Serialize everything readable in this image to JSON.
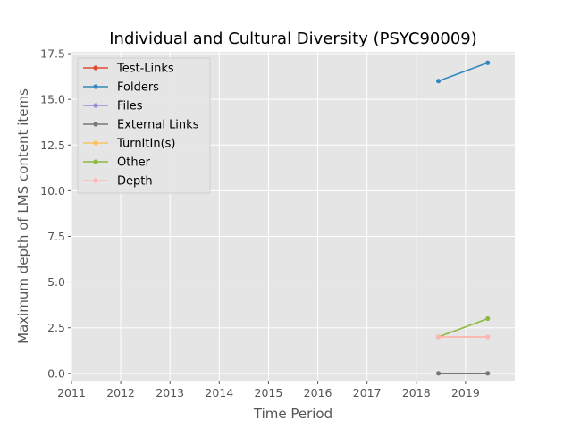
{
  "chart_data": {
    "type": "line",
    "title": "Individual and Cultural Diversity (PSYC90009)",
    "xlabel": "Time Period",
    "ylabel": "Maximum depth of LMS content items",
    "xlim": [
      2011,
      2020
    ],
    "ylim": [
      -0.4,
      17.6
    ],
    "x_ticks": [
      "2011",
      "2012",
      "2013",
      "2014",
      "2015",
      "2016",
      "2017",
      "2018",
      "2019"
    ],
    "y_ticks": [
      "0.0",
      "2.5",
      "5.0",
      "7.5",
      "10.0",
      "12.5",
      "15.0",
      "17.5"
    ],
    "grid": true,
    "legend_position": "top-left",
    "series": [
      {
        "name": "Test-Links",
        "color": "#e24a33",
        "x": [],
        "y": []
      },
      {
        "name": "Folders",
        "color": "#348abd",
        "x": [
          2018.45,
          2019.45
        ],
        "y": [
          16,
          17
        ]
      },
      {
        "name": "Files",
        "color": "#988ed5",
        "x": [],
        "y": []
      },
      {
        "name": "External Links",
        "color": "#777777",
        "x": [
          2018.45,
          2019.45
        ],
        "y": [
          0,
          0
        ]
      },
      {
        "name": "TurnItIn(s)",
        "color": "#fbc15e",
        "x": [
          2018.45,
          2019.45
        ],
        "y": [
          2,
          2
        ]
      },
      {
        "name": "Other",
        "color": "#8eba42",
        "x": [
          2018.45,
          2019.45
        ],
        "y": [
          2,
          3
        ]
      },
      {
        "name": "Depth",
        "color": "#ffb5b8",
        "x": [
          2018.45,
          2019.45
        ],
        "y": [
          2,
          2
        ]
      }
    ]
  }
}
